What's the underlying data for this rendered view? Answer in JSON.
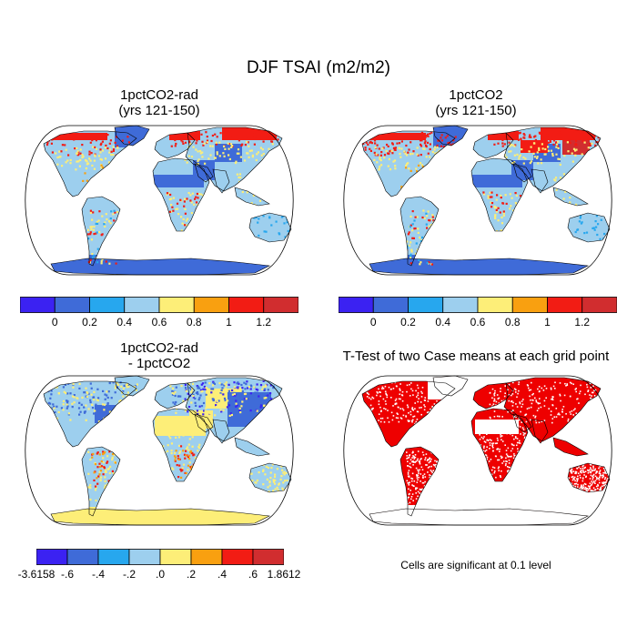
{
  "figure": {
    "title": "DJF TSAI (m2/m2)"
  },
  "panels": [
    {
      "id": "p1",
      "title_line1": "1pctCO2-rad",
      "title_line2": "(yrs 121-150)"
    },
    {
      "id": "p2",
      "title_line1": "1pctCO2",
      "title_line2": "(yrs 121-150)"
    },
    {
      "id": "p3",
      "title_line1": "1pctCO2-rad",
      "title_line2": "- 1pctCO2"
    },
    {
      "id": "p4",
      "title_line1": "T-Test of two Case means at each grid point",
      "title_line2": ""
    }
  ],
  "colorbar_top": {
    "colors": [
      "#3b22f2",
      "#3f6bd8",
      "#27a7ee",
      "#9dcfee",
      "#fdee78",
      "#f9a010",
      "#f21c14",
      "#d12d2f"
    ],
    "labels": [
      "0",
      "0.2",
      "0.4",
      "0.6",
      "0.8",
      "1",
      "1.2"
    ]
  },
  "colorbar_bottom": {
    "colors": [
      "#3b22f2",
      "#3f6bd8",
      "#27a7ee",
      "#9dcfee",
      "#fdee78",
      "#f9a010",
      "#f21c14",
      "#d12d2f"
    ],
    "labels": [
      "-3.6158",
      "-.6",
      "-.4",
      "-.2",
      ".0",
      ".2",
      ".4",
      ".6",
      "1.8612"
    ]
  },
  "significance_note": "Cells are significant at 0.1 level",
  "map_colors": {
    "blue": "#3f6bd8",
    "light_blue": "#9dcfee",
    "cyan": "#27a7ee",
    "yellow": "#fdee78",
    "orange": "#f9a010",
    "red": "#f21c14",
    "dark_red": "#d12d2f",
    "violet": "#3b22f2",
    "sig_red": "#ee0000"
  }
}
